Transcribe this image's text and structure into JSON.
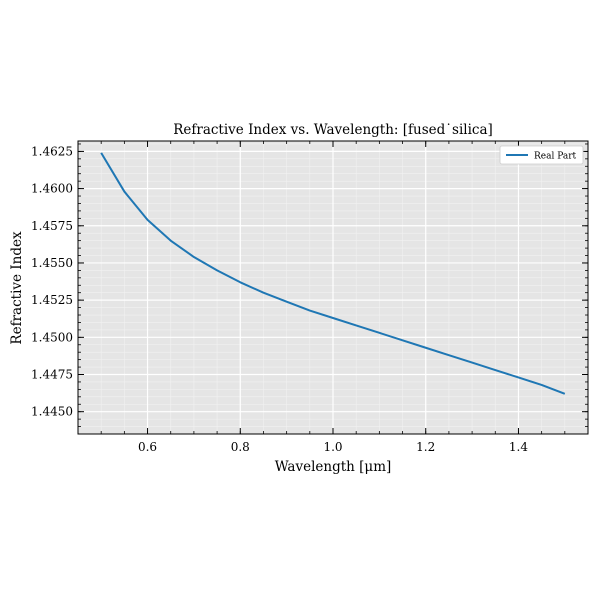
{
  "chart_data": {
    "type": "line",
    "title": "Refractive Index vs. Wavelength: [fused˙silica]",
    "xlabel": "Wavelength [μm]",
    "ylabel": "Refractive Index",
    "xlim": [
      0.45,
      1.55
    ],
    "ylim": [
      1.4435,
      1.4632
    ],
    "xticks": [
      0.6,
      0.8,
      1.0,
      1.2,
      1.4
    ],
    "xtick_labels": [
      "0.6",
      "0.8",
      "1.0",
      "1.2",
      "1.4"
    ],
    "yticks": [
      1.445,
      1.4475,
      1.45,
      1.4525,
      1.455,
      1.4575,
      1.46,
      1.4625
    ],
    "ytick_labels": [
      "1.4450",
      "1.4475",
      "1.4500",
      "1.4525",
      "1.4550",
      "1.4575",
      "1.4600",
      "1.4625"
    ],
    "grid": true,
    "legend_position": "top-right",
    "background_color": "#e5e5e5",
    "series": [
      {
        "name": "Real Part",
        "color": "#1f77b4",
        "x": [
          0.5,
          0.55,
          0.6,
          0.65,
          0.7,
          0.75,
          0.8,
          0.85,
          0.9,
          0.95,
          1.0,
          1.05,
          1.1,
          1.15,
          1.2,
          1.25,
          1.3,
          1.35,
          1.4,
          1.45,
          1.5
        ],
        "y": [
          1.4624,
          1.4598,
          1.4579,
          1.4565,
          1.4554,
          1.4545,
          1.4537,
          1.453,
          1.4524,
          1.4518,
          1.4513,
          1.4508,
          1.4503,
          1.4498,
          1.4493,
          1.4488,
          1.4483,
          1.4478,
          1.4473,
          1.4468,
          1.4462
        ]
      }
    ]
  }
}
